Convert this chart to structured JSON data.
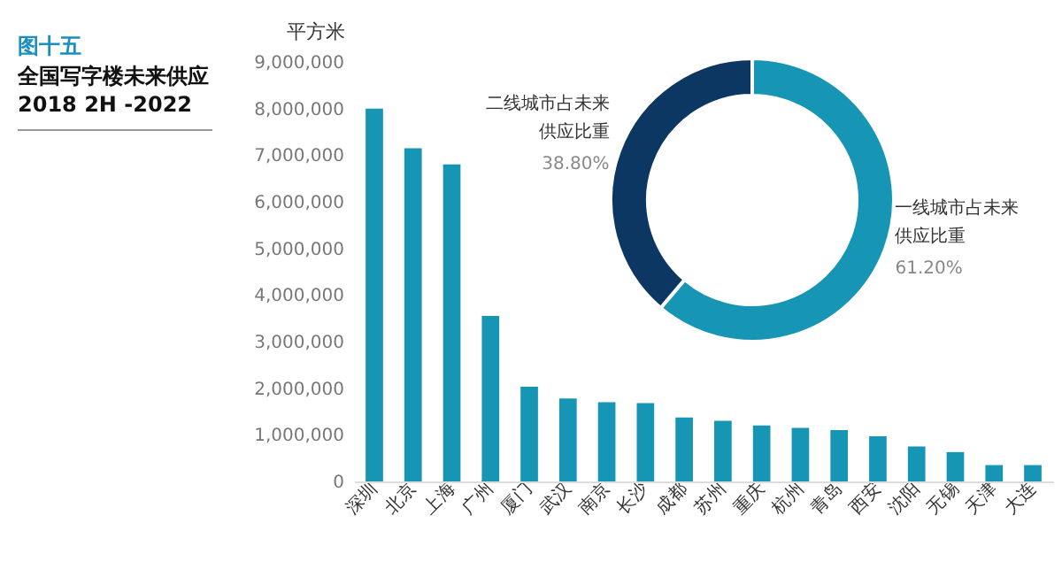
{
  "chart_data": [
    {
      "type": "bar",
      "title": "全国写字楼未来供应",
      "subtitle": "2018 2H -2022",
      "annotations": [
        "图十五"
      ],
      "ylabel": "平方米",
      "categories": [
        "深圳",
        "北京",
        "上海",
        "广州",
        "厦门",
        "武汉",
        "南京",
        "长沙",
        "成都",
        "苏州",
        "重庆",
        "杭州",
        "青岛",
        "西安",
        "沈阳",
        "无锡",
        "天津",
        "大连"
      ],
      "values": [
        8000000,
        7150000,
        6800000,
        3550000,
        2030000,
        1780000,
        1700000,
        1680000,
        1370000,
        1300000,
        1200000,
        1150000,
        1100000,
        970000,
        750000,
        630000,
        350000,
        350000
      ],
      "color": "#1795b5",
      "ylim": [
        0,
        9000000
      ],
      "yticks": [
        0,
        {
          "value": 1000000,
          "label": "1,000,000"
        },
        {
          "value": 2000000,
          "label": "2,000,000"
        },
        {
          "value": 3000000,
          "label": "3,000,000"
        },
        {
          "value": 4000000,
          "label": "4,000,000"
        },
        {
          "value": 5000000,
          "label": "5,000,000"
        },
        {
          "value": 6000000,
          "label": "6,000,000"
        },
        {
          "value": 7000000,
          "label": "7,000,000"
        },
        {
          "value": 8000000,
          "label": "8,000,000"
        },
        {
          "value": 9000000,
          "label": "9,000,000"
        }
      ],
      "grid": false
    },
    {
      "type": "donut",
      "categories": [
        "一线城市占未来供应比重",
        "二线城市占未来供应比重"
      ],
      "values": [
        61.2,
        38.8
      ],
      "colors": [
        "#1795b5",
        "#0d3763"
      ],
      "value_labels": [
        "61.20%",
        "38.80%"
      ]
    }
  ]
}
